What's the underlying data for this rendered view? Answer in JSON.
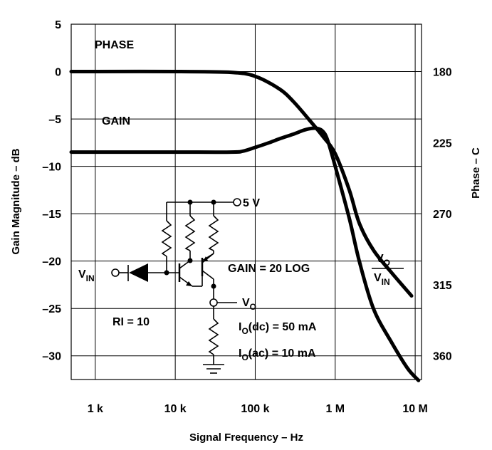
{
  "chart_data": {
    "type": "line",
    "xlabel": "Signal Frequency – Hz",
    "ylabel": "Gain Magnitude – dB",
    "y2label": "Phase – C",
    "x_scale": "log",
    "xlim": [
      500,
      12000000
    ],
    "ylim": [
      -32.5,
      5
    ],
    "y2lim": [
      375,
      150
    ],
    "x_ticks": [
      1000,
      10000,
      100000,
      1000000,
      10000000
    ],
    "x_tick_labels": [
      "1 k",
      "10 k",
      "100 k",
      "1 M",
      "10 M"
    ],
    "y_ticks": [
      5,
      0,
      -5,
      -10,
      -15,
      -20,
      -25,
      -30
    ],
    "y_tick_labels": [
      "5",
      "0",
      "–5",
      "–10",
      "–15",
      "–20",
      "–25",
      "–30"
    ],
    "y2_ticks": [
      180,
      225,
      270,
      315,
      360
    ],
    "y2_tick_labels": [
      "180",
      "225",
      "270",
      "315",
      "360"
    ],
    "grid": true,
    "series": [
      {
        "name": "PHASE",
        "axis": "right",
        "x": [
          500,
          1000,
          10000,
          50000,
          100000,
          200000,
          300000,
          500000,
          700000,
          1000000,
          1500000,
          2000000,
          3000000,
          5000000,
          9000000
        ],
        "values": [
          180,
          180,
          180,
          180.5,
          183,
          191,
          199,
          212,
          221,
          232,
          255,
          276,
          293,
          307,
          322
        ]
      },
      {
        "name": "GAIN",
        "axis": "left",
        "x": [
          500,
          1000,
          10000,
          50000,
          70000,
          100000,
          150000,
          200000,
          300000,
          400000,
          500000,
          600000,
          700000,
          800000,
          1000000,
          1500000,
          2000000,
          3000000,
          5000000,
          8000000,
          11000000
        ],
        "values": [
          -8.5,
          -8.5,
          -8.5,
          -8.5,
          -8.4,
          -8.0,
          -7.5,
          -7.1,
          -6.6,
          -6.2,
          -6.0,
          -6.0,
          -6.3,
          -7.2,
          -10.0,
          -15.5,
          -20.0,
          -25.0,
          -28.5,
          -31.3,
          -32.6
        ]
      }
    ],
    "annotations": [
      "PHASE",
      "GAIN",
      "5 V",
      "V",
      "IN",
      "GAIN = 20 LOG",
      "V",
      "O",
      "V",
      "IN",
      "V",
      "O",
      "RI = 10",
      "I",
      "O",
      "(dc) = 50 mA",
      "I",
      "O",
      "(ac) = 10 mA"
    ]
  },
  "labels": {
    "phase": "PHASE",
    "gain": "GAIN",
    "supply": "5 V",
    "vin_main": "V",
    "vin_sub": "IN",
    "gain_formula": "GAIN = 20 LOG",
    "frac_num_main": "V",
    "frac_num_sub": "O",
    "frac_den_main": "V",
    "frac_den_sub": "IN",
    "vo_main": "V",
    "vo_sub": "O",
    "ri": "RI = 10",
    "io_dc_main": "I",
    "io_dc_sub": "O",
    "io_dc_rest": "(dc) = 50 mA",
    "io_ac_main": "I",
    "io_ac_sub": "O",
    "io_ac_rest": "(ac) = 10 mA"
  }
}
